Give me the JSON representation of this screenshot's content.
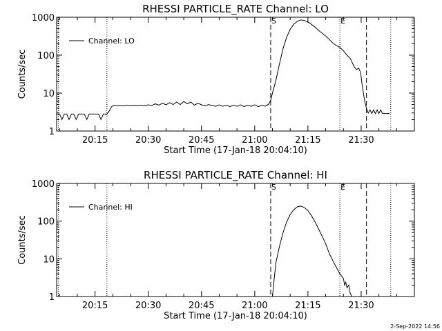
{
  "footer_timestamp": "2-Sep-2022 14:56",
  "colors": {
    "background": "#ffffff",
    "foreground": "#000000"
  },
  "chart_data": [
    {
      "type": "line",
      "title": "RHESSI PARTICLE_RATE Channel: LO",
      "xlabel": "Start Time (17-Jan-18 20:04:10)",
      "ylabel": "Counts/sec",
      "y_scale": "log",
      "xlim": [
        "20:04:10",
        "21:45:00"
      ],
      "ylim": [
        1,
        1000
      ],
      "x_ticks": [
        "20:15",
        "20:30",
        "20:45",
        "21:00",
        "21:15",
        "21:30"
      ],
      "y_ticks": [
        "1",
        "10",
        "100",
        "1000"
      ],
      "legend": {
        "position": "top-left",
        "entries": [
          "Channel: LO"
        ]
      },
      "vertical_markers": [
        {
          "time": "20:18:20",
          "style": "dotted",
          "label": ""
        },
        {
          "time": "21:04:30",
          "style": "dashed",
          "label": "S"
        },
        {
          "time": "21:24:00",
          "style": "dotted",
          "label": "E"
        },
        {
          "time": "21:31:30",
          "style": "dashed",
          "label": ""
        },
        {
          "time": "21:38:20",
          "style": "dotted",
          "label": ""
        },
        {
          "time": "20:04:40",
          "style": "dotted",
          "label": ""
        }
      ],
      "series": [
        {
          "name": "Channel: LO",
          "points": [
            [
              "20:04:10",
              2.8
            ],
            [
              "20:05:00",
              2.8
            ],
            [
              "20:05:40",
              2.0
            ],
            [
              "20:06:20",
              2.8
            ],
            [
              "20:07:00",
              2.8
            ],
            [
              "20:07:40",
              2.0
            ],
            [
              "20:08:20",
              2.8
            ],
            [
              "20:09:00",
              2.8
            ],
            [
              "20:09:40",
              2.0
            ],
            [
              "20:10:20",
              2.8
            ],
            [
              "20:11:00",
              2.8
            ],
            [
              "20:12:00",
              2.8
            ],
            [
              "20:12:40",
              2.0
            ],
            [
              "20:13:20",
              2.8
            ],
            [
              "20:14:00",
              2.8
            ],
            [
              "20:15:00",
              2.8
            ],
            [
              "20:16:00",
              2.8
            ],
            [
              "20:16:40",
              2.0
            ],
            [
              "20:17:20",
              2.8
            ],
            [
              "20:18:20",
              2.8
            ],
            [
              "20:19:00",
              3.4
            ],
            [
              "20:19:40",
              4.4
            ],
            [
              "20:20:20",
              4.8
            ],
            [
              "20:21:00",
              4.6
            ],
            [
              "20:22:00",
              4.7
            ],
            [
              "20:23:00",
              4.6
            ],
            [
              "20:24:00",
              4.8
            ],
            [
              "20:25:00",
              4.6
            ],
            [
              "20:26:00",
              4.8
            ],
            [
              "20:27:00",
              4.7
            ],
            [
              "20:28:00",
              4.8
            ],
            [
              "20:29:00",
              4.6
            ],
            [
              "20:30:00",
              4.9
            ],
            [
              "20:31:00",
              4.7
            ],
            [
              "20:32:00",
              5.2
            ],
            [
              "20:33:00",
              4.8
            ],
            [
              "20:34:00",
              5.4
            ],
            [
              "20:35:00",
              4.9
            ],
            [
              "20:36:00",
              5.6
            ],
            [
              "20:37:00",
              5.0
            ],
            [
              "20:38:00",
              5.8
            ],
            [
              "20:39:00",
              5.0
            ],
            [
              "20:40:00",
              6.0
            ],
            [
              "20:41:00",
              5.2
            ],
            [
              "20:42:00",
              5.8
            ],
            [
              "20:43:00",
              4.8
            ],
            [
              "20:44:00",
              5.4
            ],
            [
              "20:45:00",
              4.9
            ],
            [
              "20:46:00",
              4.6
            ],
            [
              "20:47:00",
              5.0
            ],
            [
              "20:48:00",
              4.7
            ],
            [
              "20:49:00",
              4.5
            ],
            [
              "20:50:00",
              4.9
            ],
            [
              "20:51:00",
              4.5
            ],
            [
              "20:52:00",
              4.8
            ],
            [
              "20:53:00",
              4.4
            ],
            [
              "20:54:00",
              4.8
            ],
            [
              "20:55:00",
              4.5
            ],
            [
              "20:56:00",
              4.9
            ],
            [
              "20:57:00",
              4.4
            ],
            [
              "20:58:00",
              4.8
            ],
            [
              "20:59:00",
              4.5
            ],
            [
              "21:00:00",
              4.9
            ],
            [
              "21:01:00",
              4.4
            ],
            [
              "21:02:00",
              4.8
            ],
            [
              "21:03:00",
              4.5
            ],
            [
              "21:04:00",
              5.2
            ],
            [
              "21:04:30",
              6.5
            ],
            [
              "21:05:00",
              10
            ],
            [
              "21:06:00",
              22
            ],
            [
              "21:07:00",
              60
            ],
            [
              "21:08:00",
              150
            ],
            [
              "21:09:00",
              300
            ],
            [
              "21:10:00",
              480
            ],
            [
              "21:11:00",
              650
            ],
            [
              "21:12:00",
              780
            ],
            [
              "21:13:00",
              850
            ],
            [
              "21:14:00",
              820
            ],
            [
              "21:15:00",
              750
            ],
            [
              "21:16:00",
              650
            ],
            [
              "21:17:00",
              550
            ],
            [
              "21:18:00",
              450
            ],
            [
              "21:19:00",
              380
            ],
            [
              "21:20:00",
              320
            ],
            [
              "21:21:00",
              260
            ],
            [
              "21:22:00",
              210
            ],
            [
              "21:23:00",
              180
            ],
            [
              "21:24:00",
              160
            ],
            [
              "21:25:00",
              130
            ],
            [
              "21:26:00",
              100
            ],
            [
              "21:27:00",
              80
            ],
            [
              "21:28:00",
              50
            ],
            [
              "21:28:40",
              42
            ],
            [
              "21:29:20",
              45
            ],
            [
              "21:29:50",
              35
            ],
            [
              "21:30:20",
              15
            ],
            [
              "21:31:00",
              6
            ],
            [
              "21:31:30",
              4
            ],
            [
              "21:32:00",
              3.0
            ],
            [
              "21:32:30",
              3.6
            ],
            [
              "21:33:00",
              2.9
            ],
            [
              "21:33:30",
              3.6
            ],
            [
              "21:34:00",
              2.9
            ],
            [
              "21:34:30",
              3.6
            ],
            [
              "21:35:00",
              2.9
            ],
            [
              "21:35:30",
              3.6
            ],
            [
              "21:36:00",
              2.9
            ],
            [
              "21:38:00",
              2.9
            ]
          ]
        }
      ]
    },
    {
      "type": "line",
      "title": "RHESSI PARTICLE_RATE Channel: HI",
      "xlabel": "Start Time (17-Jan-18 20:04:10)",
      "ylabel": "Counts/sec",
      "y_scale": "log",
      "xlim": [
        "20:04:10",
        "21:45:00"
      ],
      "ylim": [
        1,
        1000
      ],
      "x_ticks": [
        "20:15",
        "20:30",
        "20:45",
        "21:00",
        "21:15",
        "21:30"
      ],
      "y_ticks": [
        "1",
        "10",
        "100",
        "1000"
      ],
      "legend": {
        "position": "top-left",
        "entries": [
          "Channel: HI"
        ]
      },
      "vertical_markers": [
        {
          "time": "20:18:20",
          "style": "dotted",
          "label": ""
        },
        {
          "time": "21:04:30",
          "style": "dashed",
          "label": "S"
        },
        {
          "time": "21:24:00",
          "style": "dotted",
          "label": "E"
        },
        {
          "time": "21:31:30",
          "style": "dashed",
          "label": ""
        },
        {
          "time": "21:38:20",
          "style": "dotted",
          "label": ""
        },
        {
          "time": "20:04:40",
          "style": "dotted",
          "label": ""
        }
      ],
      "series": [
        {
          "name": "Channel: HI",
          "points": [
            [
              "21:05:00",
              1.0
            ],
            [
              "21:05:30",
              3
            ],
            [
              "21:06:00",
              8
            ],
            [
              "21:07:00",
              22
            ],
            [
              "21:08:00",
              50
            ],
            [
              "21:09:00",
              95
            ],
            [
              "21:10:00",
              150
            ],
            [
              "21:11:00",
              200
            ],
            [
              "21:12:00",
              240
            ],
            [
              "21:13:00",
              250
            ],
            [
              "21:14:00",
              230
            ],
            [
              "21:15:00",
              190
            ],
            [
              "21:16:00",
              140
            ],
            [
              "21:17:00",
              95
            ],
            [
              "21:18:00",
              62
            ],
            [
              "21:19:00",
              40
            ],
            [
              "21:20:00",
              25
            ],
            [
              "21:21:00",
              14
            ],
            [
              "21:22:00",
              9
            ],
            [
              "21:23:00",
              6
            ],
            [
              "21:24:00",
              4
            ],
            [
              "21:25:00",
              3
            ],
            [
              "21:25:20",
              2.0
            ],
            [
              "21:25:40",
              2.4
            ],
            [
              "21:26:00",
              1.7
            ],
            [
              "21:26:30",
              2.0
            ],
            [
              "21:26:50",
              1.3
            ],
            [
              "21:27:20",
              1.0
            ]
          ]
        }
      ]
    }
  ]
}
